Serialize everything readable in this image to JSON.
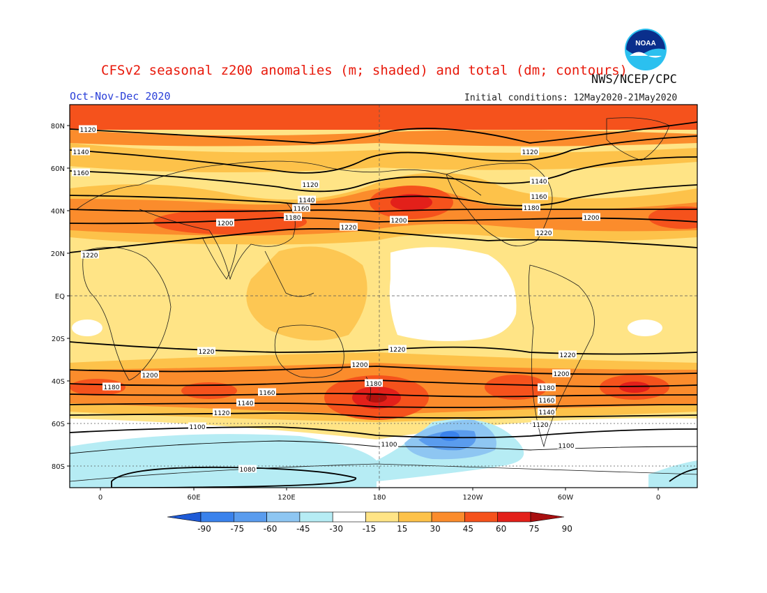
{
  "header": {
    "title": "CFSv2 seasonal z200 anomalies (m; shaded) and total (dm; contours)",
    "agency": "NWS/NCEP/CPC",
    "season": "Oct-Nov-Dec 2020",
    "initial_conditions": "Initial conditions: 12May2020-21May2020"
  },
  "logo": {
    "text": "NOAA",
    "icon": "noaa-logo-icon"
  },
  "axes": {
    "lat_labels": [
      "80N",
      "60N",
      "40N",
      "20N",
      "EQ",
      "20S",
      "40S",
      "60S",
      "80S"
    ],
    "lon_labels": [
      "0",
      "60E",
      "120E",
      "180",
      "120W",
      "60W",
      "0"
    ]
  },
  "contour_labels": [
    {
      "id": "c1",
      "text": "1120"
    },
    {
      "id": "c2",
      "text": "1140"
    },
    {
      "id": "c3",
      "text": "1160"
    },
    {
      "id": "c4",
      "text": "1120"
    },
    {
      "id": "c5",
      "text": "1140"
    },
    {
      "id": "c6",
      "text": "1160"
    },
    {
      "id": "c7",
      "text": "1180"
    },
    {
      "id": "c8",
      "text": "1200"
    },
    {
      "id": "c9",
      "text": "1220"
    },
    {
      "id": "c10",
      "text": "1200"
    },
    {
      "id": "c11",
      "text": "1120"
    },
    {
      "id": "c12",
      "text": "1140"
    },
    {
      "id": "c13",
      "text": "1160"
    },
    {
      "id": "c14",
      "text": "1180"
    },
    {
      "id": "c15",
      "text": "1220"
    },
    {
      "id": "c16",
      "text": "1200"
    },
    {
      "id": "c17",
      "text": "1220"
    },
    {
      "id": "c18",
      "text": "1220"
    },
    {
      "id": "c19",
      "text": "1220"
    },
    {
      "id": "c20",
      "text": "1220"
    },
    {
      "id": "c21",
      "text": "1200"
    },
    {
      "id": "c22",
      "text": "1200"
    },
    {
      "id": "c23",
      "text": "1200"
    },
    {
      "id": "c24",
      "text": "1180"
    },
    {
      "id": "c25",
      "text": "1160"
    },
    {
      "id": "c26",
      "text": "1140"
    },
    {
      "id": "c27",
      "text": "1120"
    },
    {
      "id": "c28",
      "text": "1180"
    },
    {
      "id": "c29",
      "text": "1160"
    },
    {
      "id": "c30",
      "text": "1140"
    },
    {
      "id": "c31",
      "text": "1120"
    },
    {
      "id": "c32",
      "text": "1180"
    },
    {
      "id": "c33",
      "text": "1100"
    },
    {
      "id": "c34",
      "text": "1100"
    },
    {
      "id": "c35",
      "text": "1100"
    },
    {
      "id": "c36",
      "text": "1080"
    }
  ],
  "colorbar": {
    "labels": [
      "-90",
      "-75",
      "-60",
      "-45",
      "-30",
      "-15",
      "15",
      "30",
      "45",
      "60",
      "75",
      "90"
    ],
    "colors": [
      "#1e64e6",
      "#3a82ec",
      "#5a9cee",
      "#8ec6f2",
      "#b6ecf4",
      "#ffffff",
      "#ffe486",
      "#fdc24a",
      "#fb8c2c",
      "#f5521c",
      "#e3201a",
      "#b0120e"
    ],
    "left_arrow_color": "#1e5ad6",
    "right_arrow_color": "#a80f10"
  }
}
